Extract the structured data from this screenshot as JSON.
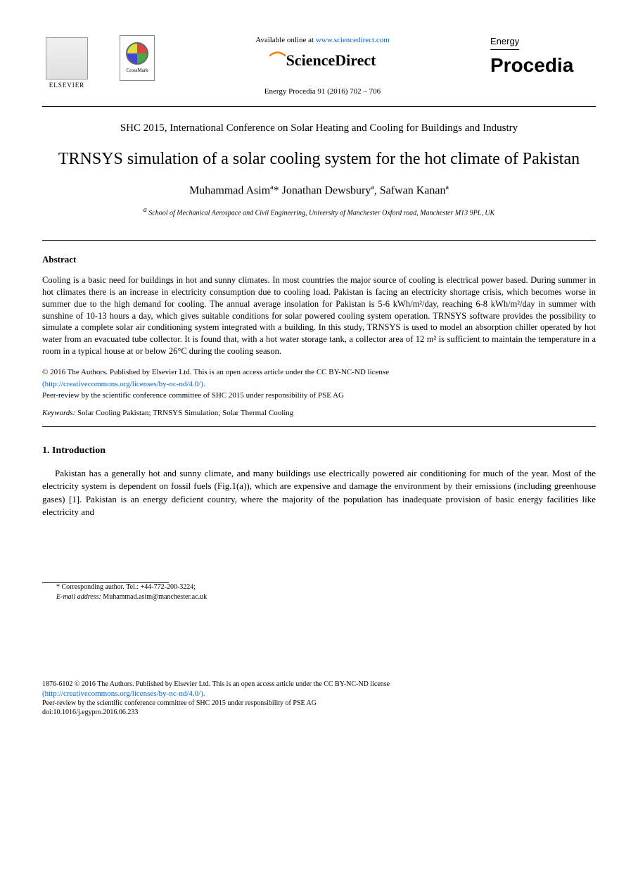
{
  "header": {
    "elsevier": "ELSEVIER",
    "crossmark": "CrossMark",
    "available_prefix": "Available online at ",
    "available_link": "www.sciencedirect.com",
    "sciencedirect": "ScienceDirect",
    "journal_ref": "Energy Procedia 91 (2016) 702 – 706",
    "energy": "Energy",
    "procedia": "Procedia"
  },
  "conference": "SHC 2015, International Conference on Solar Heating and Cooling for Buildings and Industry",
  "title": "TRNSYS simulation of a solar cooling system for the hot climate of Pakistan",
  "authors": {
    "a1_name": "Muhammad Asim",
    "a1_sup": "a",
    "a1_star": "*",
    "a2_name": " Jonathan Dewsbury",
    "a2_sup": "a",
    "a3_name": ", Safwan Kanan",
    "a3_sup": "a"
  },
  "affiliation_sup": "a",
  "affiliation": " School of Mechanical Aerospace and Civil Engineering, University of Manchester Oxford road, Manchester  M13 9PL, UK",
  "abstract_heading": "Abstract",
  "abstract_body": "Cooling is a basic need for buildings in hot and sunny climates. In most countries the major source of cooling is electrical power based. During summer in hot climates there is an increase in electricity consumption due to cooling load. Pakistan is facing an electricity shortage crisis, which becomes worse in summer due to the high demand for cooling. The annual average insolation for Pakistan is 5-6 kWh/m²/day, reaching 6-8 kWh/m²/day in summer with sunshine of 10-13 hours a day, which gives suitable conditions for solar powered cooling system operation. TRNSYS software provides the possibility to simulate a complete solar air conditioning system integrated with a building. In this study, TRNSYS is used to model an absorption chiller operated by hot water from an evacuated tube collector. It is found that, with a hot water storage tank, a collector area of 12 m² is sufficient to maintain the temperature in a room in a typical house at or below 26°C during the cooling season.",
  "copyright": "© 2016 The Authors. Published by Elsevier Ltd. This is an open access article under the CC BY-NC-ND license",
  "license_url": "(http://creativecommons.org/licenses/by-nc-nd/4.0/).",
  "peer_review": "Peer-review by the scientific conference committee of SHC 2015 under responsibility of PSE AG",
  "keywords_label": "Keywords:",
  "keywords": " Solar Cooling Pakistan; TRNSYS Simulation; Solar Thermal Cooling",
  "intro_heading": "1. Introduction",
  "intro_body": "Pakistan has a generally hot and sunny climate, and many buildings use electrically powered air conditioning for much of the year. Most of the electricity system is dependent on fossil fuels (Fig.1(a)), which are expensive and damage the environment by their emissions (including greenhouse gases) [1]. Pakistan is an energy deficient country, where the majority of the population has inadequate provision of basic energy facilities like electricity and",
  "corresponding": {
    "label": "* Corresponding author. Tel.: ",
    "tel": "+44-772-200-3224;",
    "email_label": "E-mail address:",
    "email": " Muhammad.asim@manchester.ac.uk"
  },
  "footer": {
    "issn_line": "1876-6102 © 2016 The Authors. Published by Elsevier Ltd. This is an open access article under the CC BY-NC-ND license",
    "license_url": "(http://creativecommons.org/licenses/by-nc-nd/4.0/).",
    "peer": "Peer-review by the scientific conference committee of SHC 2015 under responsibility of PSE AG",
    "doi": "doi:10.1016/j.egypro.2016.06.233"
  },
  "colors": {
    "link": "#0066cc",
    "text": "#000000",
    "orange": "#f57c00"
  }
}
